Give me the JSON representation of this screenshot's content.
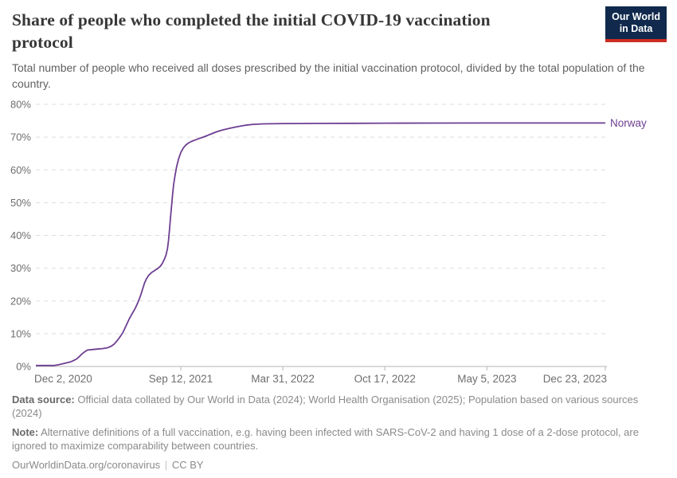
{
  "header": {
    "title": "Share of people who completed the initial COVID-19 vaccination protocol",
    "subtitle": "Total number of people who received all doses prescribed by the initial vaccination protocol, divided by the total population of the country."
  },
  "logo": {
    "line1": "Our World",
    "line2": "in Data"
  },
  "footer": {
    "data_source": {
      "label": "Data source:",
      "text": "Official data collated by Our World in Data (2024); World Health Organisation (2025); Population based on various sources (2024)"
    },
    "note": {
      "label": "Note:",
      "text": "Alternative definitions of a full vaccination, e.g. having been infected with SARS-CoV-2 and having 1 dose of a 2-dose protocol, are ignored to maximize comparability between countries."
    },
    "license": {
      "site": "OurWorldinData.org/coronavirus",
      "divider": "|",
      "license": "CC BY"
    }
  },
  "chart_data": {
    "type": "line",
    "title": "Share of people who completed the initial COVID-19 vaccination protocol",
    "xlabel": "",
    "ylabel": "",
    "unit": "%",
    "grid": true,
    "legend_position": "end-of-line entity label",
    "x_range_days": [
      0,
      1116
    ],
    "y_range": [
      0,
      80
    ],
    "y_ticks": [
      0,
      10,
      20,
      30,
      40,
      50,
      60,
      70,
      80
    ],
    "x_ticks": [
      {
        "label": "Dec 2, 2020",
        "day": 0,
        "align": "start",
        "tick": false
      },
      {
        "label": "Sep 12, 2021",
        "day": 284,
        "align": "middle",
        "tick": true
      },
      {
        "label": "Mar 31, 2022",
        "day": 484,
        "align": "middle",
        "tick": true
      },
      {
        "label": "Oct 17, 2022",
        "day": 684,
        "align": "middle",
        "tick": true
      },
      {
        "label": "May 5, 2023",
        "day": 884,
        "align": "middle",
        "tick": true
      },
      {
        "label": "Dec 23, 2023",
        "day": 1116,
        "align": "end",
        "tick": true
      }
    ],
    "colors": {
      "series": "#6d3e91",
      "grid": "#dedede",
      "axis": "#c4c4c4",
      "tick_text": "#6e6e6e"
    },
    "series": [
      {
        "name": "Norway",
        "color": "#6d3e91",
        "points_day_pct": [
          [
            0,
            0
          ],
          [
            20,
            0.05
          ],
          [
            36,
            0.2
          ],
          [
            44,
            0.5
          ],
          [
            52,
            0.8
          ],
          [
            60,
            1.1
          ],
          [
            68,
            1.4
          ],
          [
            74,
            1.8
          ],
          [
            80,
            2.3
          ],
          [
            85,
            3.0
          ],
          [
            90,
            3.8
          ],
          [
            95,
            4.4
          ],
          [
            99,
            4.8
          ],
          [
            101,
            5.0
          ],
          [
            110,
            5.15
          ],
          [
            120,
            5.3
          ],
          [
            130,
            5.45
          ],
          [
            140,
            5.7
          ],
          [
            148,
            6.2
          ],
          [
            154,
            6.9
          ],
          [
            160,
            8.0
          ],
          [
            166,
            9.3
          ],
          [
            171,
            10.5
          ],
          [
            177,
            12.5
          ],
          [
            183,
            14.5
          ],
          [
            189,
            16.2
          ],
          [
            195,
            17.8
          ],
          [
            200,
            19.5
          ],
          [
            205,
            21.5
          ],
          [
            209,
            23.5
          ],
          [
            213,
            25.5
          ],
          [
            217,
            26.8
          ],
          [
            221,
            27.8
          ],
          [
            227,
            28.7
          ],
          [
            233,
            29.3
          ],
          [
            239,
            29.9
          ],
          [
            244,
            30.6
          ],
          [
            248,
            31.5
          ],
          [
            252,
            32.8
          ],
          [
            255,
            34.0
          ],
          [
            258,
            36.0
          ],
          [
            260,
            38.5
          ],
          [
            262,
            42.0
          ],
          [
            264,
            45.5
          ],
          [
            266,
            49.0
          ],
          [
            268,
            52.5
          ],
          [
            270,
            55.5
          ],
          [
            273,
            58.5
          ],
          [
            276,
            61.0
          ],
          [
            280,
            63.5
          ],
          [
            284,
            65.3
          ],
          [
            289,
            66.7
          ],
          [
            294,
            67.6
          ],
          [
            299,
            68.2
          ],
          [
            305,
            68.7
          ],
          [
            312,
            69.1
          ],
          [
            320,
            69.6
          ],
          [
            328,
            70.0
          ],
          [
            336,
            70.5
          ],
          [
            344,
            71.0
          ],
          [
            354,
            71.6
          ],
          [
            366,
            72.2
          ],
          [
            380,
            72.7
          ],
          [
            395,
            73.2
          ],
          [
            410,
            73.6
          ],
          [
            425,
            73.9
          ],
          [
            445,
            74.05
          ],
          [
            484,
            74.15
          ],
          [
            550,
            74.2
          ],
          [
            620,
            74.22
          ],
          [
            684,
            74.25
          ],
          [
            780,
            74.28
          ],
          [
            884,
            74.3
          ],
          [
            1000,
            74.3
          ],
          [
            1116,
            74.32
          ]
        ]
      }
    ]
  }
}
